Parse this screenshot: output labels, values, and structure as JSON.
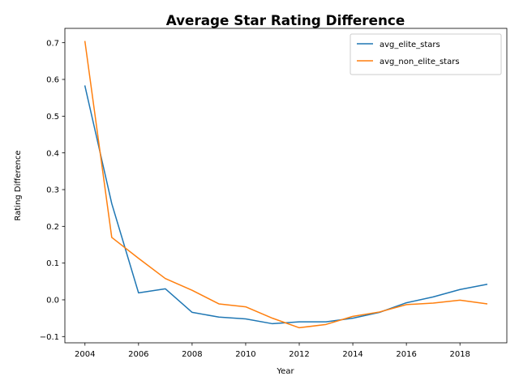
{
  "chart_data": {
    "type": "line",
    "title": "Average Star Rating Difference",
    "xlabel": "Year",
    "ylabel": "Rating Difference",
    "xlim": [
      2003.25,
      2019.75
    ],
    "ylim": [
      -0.117,
      0.739
    ],
    "x_ticks": [
      2004,
      2006,
      2008,
      2010,
      2012,
      2014,
      2016,
      2018
    ],
    "y_ticks": [
      -0.1,
      0.0,
      0.1,
      0.2,
      0.3,
      0.4,
      0.5,
      0.6,
      0.7
    ],
    "y_tick_labels": [
      "−0.1",
      "0.0",
      "0.1",
      "0.2",
      "0.3",
      "0.4",
      "0.5",
      "0.6",
      "0.7"
    ],
    "grid": false,
    "legend_position": "top-right",
    "x": [
      2004,
      2005,
      2006,
      2007,
      2008,
      2009,
      2010,
      2011,
      2012,
      2013,
      2014,
      2015,
      2016,
      2017,
      2018,
      2019
    ],
    "series": [
      {
        "name": "avg_elite_stars",
        "color": "#1f77b4",
        "values": [
          0.582,
          0.262,
          0.019,
          0.03,
          -0.034,
          -0.047,
          -0.052,
          -0.065,
          -0.06,
          -0.06,
          -0.05,
          -0.034,
          -0.008,
          0.008,
          0.028,
          0.042
        ]
      },
      {
        "name": "avg_non_elite_stars",
        "color": "#ff7f0e",
        "values": [
          0.703,
          0.17,
          0.113,
          0.058,
          0.026,
          -0.011,
          -0.019,
          -0.05,
          -0.076,
          -0.067,
          -0.045,
          -0.033,
          -0.013,
          -0.009,
          -0.001,
          -0.011
        ]
      }
    ]
  }
}
